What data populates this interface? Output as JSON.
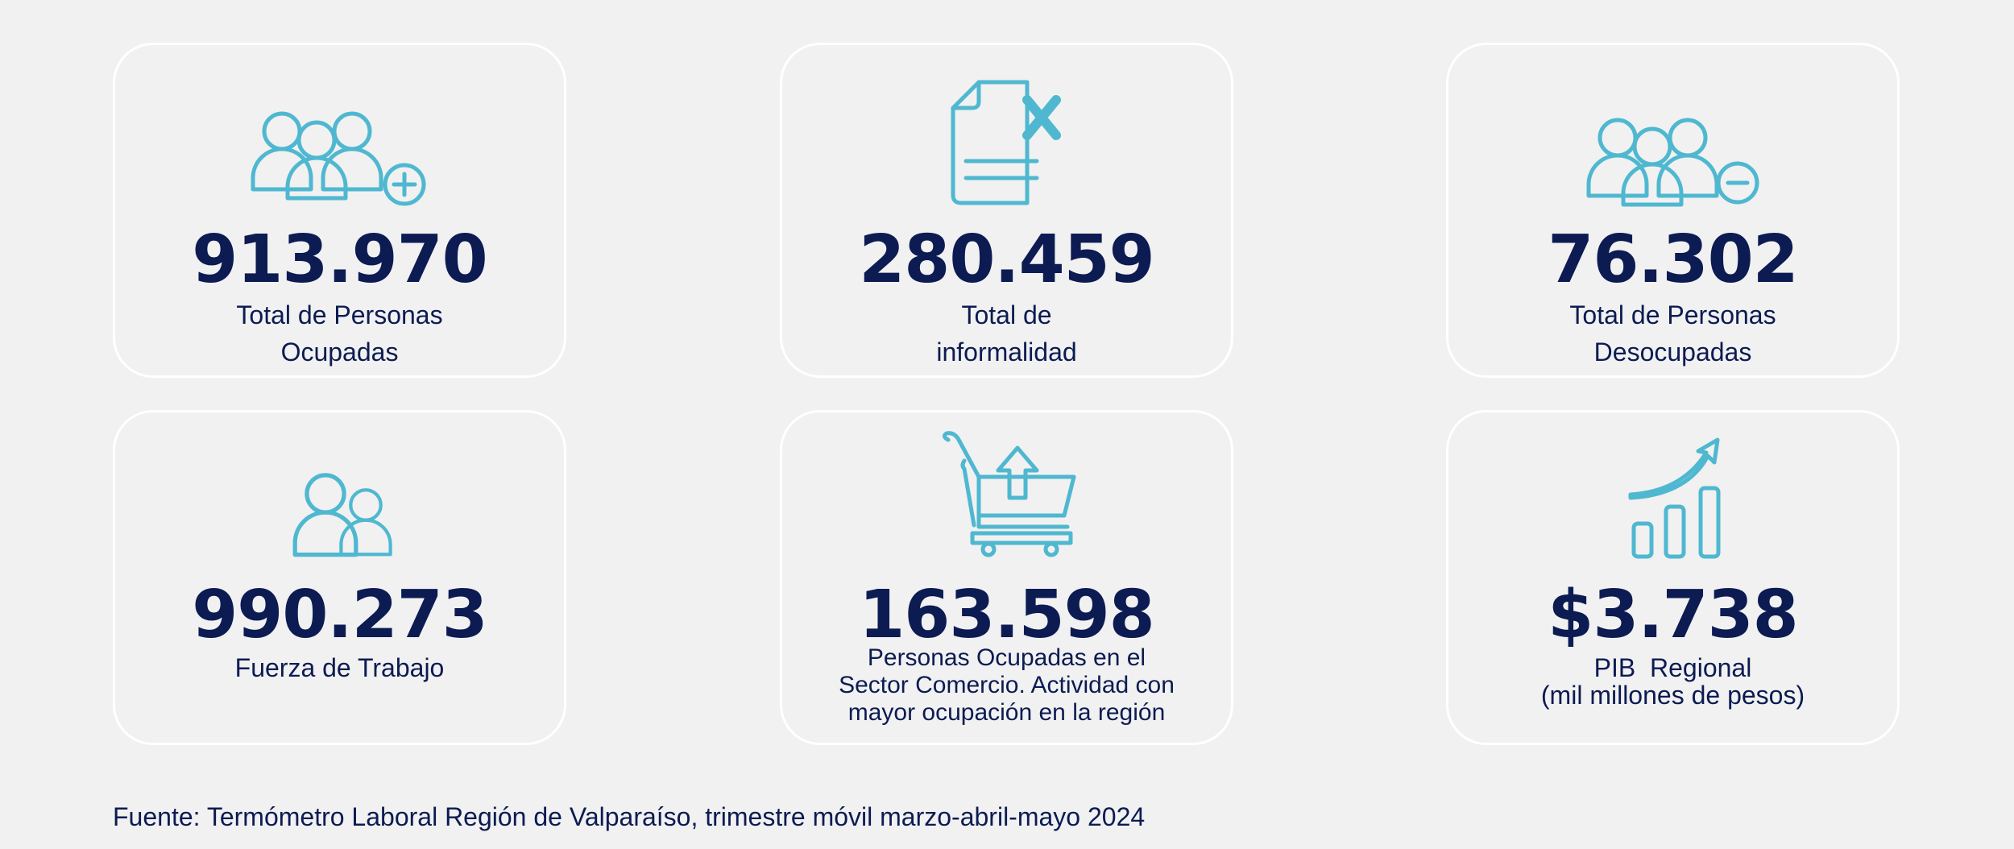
{
  "cards": [
    {
      "value": "913.970",
      "label": [
        "Total de Personas",
        "Ocupadas"
      ]
    },
    {
      "value": "280.459",
      "label": [
        "Total de",
        "informalidad"
      ]
    },
    {
      "value": "76.302",
      "label": [
        "Total de Personas",
        "Desocupadas"
      ]
    },
    {
      "value": "990.273",
      "label": [
        "Fuerza de Trabajo"
      ]
    },
    {
      "value": "163.598",
      "label": [
        "Personas Ocupadas en el",
        "Sector Comercio. Actividad con",
        "mayor ocupación en la región"
      ]
    },
    {
      "value": "$3.738",
      "label": [
        "PIB  Regional",
        "(mil millones de pesos)"
      ]
    }
  ],
  "footer": {
    "source": "Fuente: Termómetro Laboral Región de Valparaíso, trimestre móvil marzo-abril-mayo 2024"
  }
}
